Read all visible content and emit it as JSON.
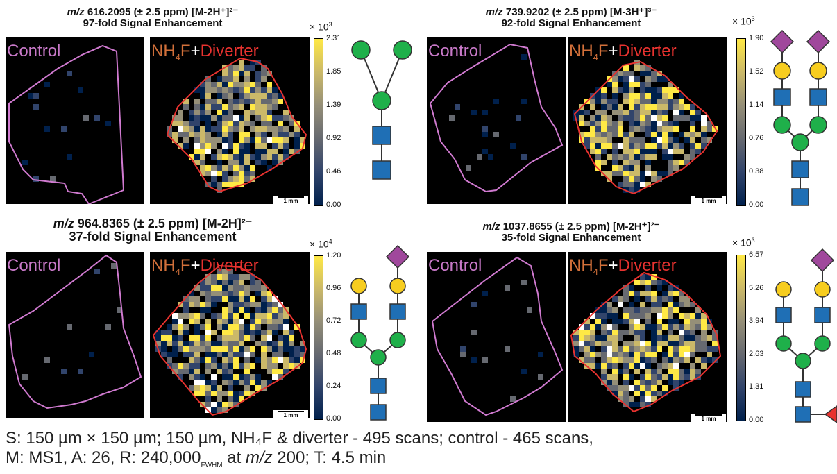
{
  "panels": [
    {
      "mz": "m/z",
      "title_line1_rest": " 616.2095 (± 2.5 ppm) [M-2H⁺]²⁻",
      "title_line2": "97-fold Signal Enhancement",
      "control_label": "Control",
      "treat_label_a": "NH",
      "treat_label_sub": "4",
      "treat_label_b": "F",
      "treat_label_plus": "+",
      "treat_label_c": "Diverter",
      "scale_bar": "1 mm",
      "colorbar_multiplier_base": "× 10",
      "colorbar_multiplier_exp": "3",
      "colorbar_ticks": [
        "2.31",
        "1.85",
        "1.39",
        "0.92",
        "0.46",
        "0.00"
      ],
      "colorbar_range": [
        0,
        2.31
      ],
      "glycan": "GlcNAc2-Man3"
    },
    {
      "mz": "m/z",
      "title_line1_rest": " 739.9202 (± 2.5 ppm) [M-3H⁺]³⁻",
      "title_line2": "92-fold Signal Enhancement",
      "control_label": "Control",
      "treat_label_a": "NH",
      "treat_label_sub": "4",
      "treat_label_b": "F",
      "treat_label_plus": "+",
      "treat_label_c": "Diverter",
      "scale_bar": "1 mm",
      "colorbar_multiplier_base": "× 10",
      "colorbar_multiplier_exp": "3",
      "colorbar_ticks": [
        "1.90",
        "1.52",
        "1.14",
        "0.76",
        "0.38",
        "0.00"
      ],
      "colorbar_range": [
        0,
        1.9
      ],
      "glycan": "biantennary disialylated"
    },
    {
      "mz": "m/z",
      "title_line1_rest": " 964.8365 (± 2.5 ppm) [M-2H]²⁻",
      "title_line2": "37-fold Signal Enhancement",
      "control_label": "Control",
      "treat_label_a": "NH",
      "treat_label_sub": "4",
      "treat_label_b": "F",
      "treat_label_plus": "+",
      "treat_label_c": "Diverter",
      "scale_bar": "1 mm",
      "colorbar_multiplier_base": "× 10",
      "colorbar_multiplier_exp": "4",
      "colorbar_ticks": [
        "1.20",
        "0.96",
        "0.72",
        "0.48",
        "0.24",
        "0.00"
      ],
      "colorbar_range": [
        0,
        1.2
      ],
      "glycan": "biantennary monosialylated"
    },
    {
      "mz": "m/z",
      "title_line1_rest": " 1037.8655 (± 2.5 ppm) [M-2H⁺]²⁻",
      "title_line2": "35-fold Signal Enhancement",
      "control_label": "Control",
      "treat_label_a": "NH",
      "treat_label_sub": "4",
      "treat_label_b": "F",
      "treat_label_plus": "+",
      "treat_label_c": "Diverter",
      "scale_bar": "1 mm",
      "colorbar_multiplier_base": "× 10",
      "colorbar_multiplier_exp": "3",
      "colorbar_ticks": [
        "6.57",
        "5.26",
        "3.94",
        "2.63",
        "1.31",
        "0.00"
      ],
      "colorbar_range": [
        0,
        6.57
      ],
      "glycan": "core-fucosylated biantennary monosialylated"
    }
  ],
  "footer": {
    "line1": "S: 150 µm × 150 µm; 150 µm, NH₄F & diverter - 495 scans; control - 465 scans,",
    "line2_a": "M: MS1, A: 26, R: 240,000",
    "line2_sub": "FWHM",
    "line2_b": " at ",
    "line2_mz": "m/z",
    "line2_c": " 200; T: 4.5 min"
  },
  "colors": {
    "control_label": "#c879c8",
    "control_outline": "#d07ad0",
    "treat_orange": "#d2703a",
    "treat_red": "#e8322f",
    "treat_outline": "#e8322f",
    "colormap": [
      "#00204c",
      "#31446b",
      "#666970",
      "#958f78",
      "#cbb969",
      "#ffe945"
    ],
    "glcnac": "#1f6fb5",
    "mannose": "#1fb04a",
    "galactose": "#f7cd1f",
    "sialic": "#a0489c",
    "fucose": "#e8322f"
  }
}
